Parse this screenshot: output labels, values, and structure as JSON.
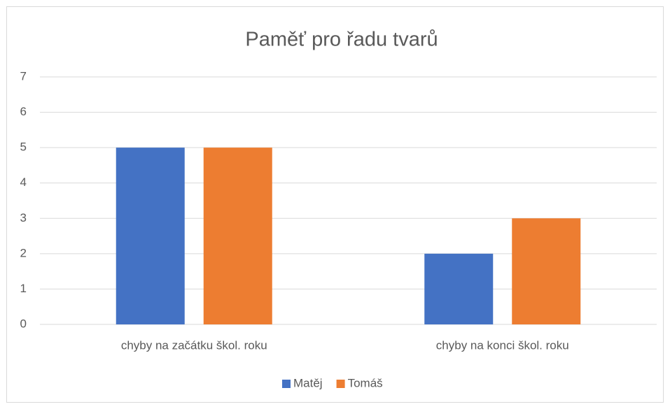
{
  "chart_data": {
    "type": "bar",
    "title": "Paměť pro řadu tvarů",
    "categories": [
      "chyby na začátku škol. roku",
      "chyby na konci škol. roku"
    ],
    "series": [
      {
        "name": "Matěj",
        "color": "#4472c4",
        "values": [
          5,
          2
        ]
      },
      {
        "name": "Tomáš",
        "color": "#ed7d31",
        "values": [
          5,
          3
        ]
      }
    ],
    "ylim": [
      0,
      7
    ],
    "yticks": [
      0,
      1,
      2,
      3,
      4,
      5,
      6,
      7
    ],
    "grid": true,
    "legend": "bottom"
  }
}
